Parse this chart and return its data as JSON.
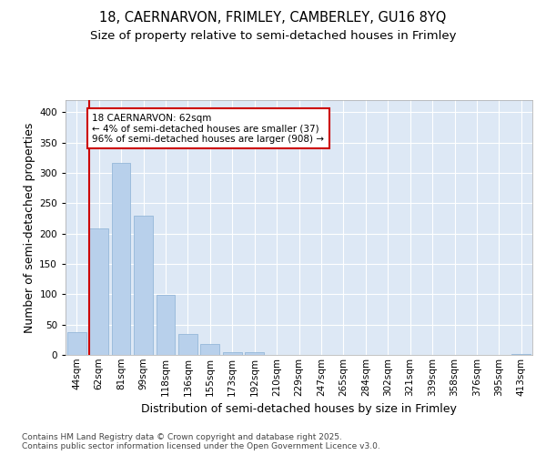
{
  "title_line1": "18, CAERNARVON, FRIMLEY, CAMBERLEY, GU16 8YQ",
  "title_line2": "Size of property relative to semi-detached houses in Frimley",
  "xlabel": "Distribution of semi-detached houses by size in Frimley",
  "ylabel": "Number of semi-detached properties",
  "categories": [
    "44sqm",
    "62sqm",
    "81sqm",
    "99sqm",
    "118sqm",
    "136sqm",
    "155sqm",
    "173sqm",
    "192sqm",
    "210sqm",
    "229sqm",
    "247sqm",
    "265sqm",
    "284sqm",
    "302sqm",
    "321sqm",
    "339sqm",
    "358sqm",
    "376sqm",
    "395sqm",
    "413sqm"
  ],
  "values": [
    38,
    208,
    317,
    230,
    99,
    35,
    18,
    5,
    5,
    0,
    0,
    0,
    0,
    0,
    0,
    0,
    0,
    0,
    0,
    0,
    2
  ],
  "bar_color": "#b8d0eb",
  "bar_edge_color": "#8ab0d4",
  "highlight_color": "#cc0000",
  "highlight_index": 1,
  "annotation_text": "18 CAERNARVON: 62sqm\n← 4% of semi-detached houses are smaller (37)\n96% of semi-detached houses are larger (908) →",
  "footer": "Contains HM Land Registry data © Crown copyright and database right 2025.\nContains public sector information licensed under the Open Government Licence v3.0.",
  "ylim": [
    0,
    420
  ],
  "yticks": [
    0,
    50,
    100,
    150,
    200,
    250,
    300,
    350,
    400
  ],
  "fig_bg_color": "#ffffff",
  "plot_bg_color": "#dde8f5",
  "grid_color": "#ffffff",
  "title_fontsize": 10.5,
  "subtitle_fontsize": 9.5,
  "axis_label_fontsize": 9,
  "tick_fontsize": 7.5,
  "footer_fontsize": 6.5
}
